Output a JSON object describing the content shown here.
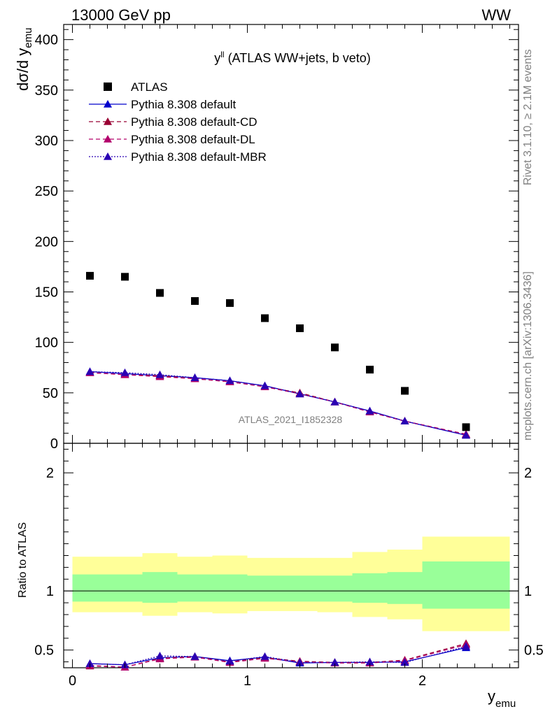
{
  "header": {
    "left": "13000 GeV pp",
    "right": "WW"
  },
  "side_labels": {
    "rivet": "Rivet 3.1.10, ≥ 2.1M events",
    "mcplots": "mcplots.cern.ch [arXiv:1306.3436]"
  },
  "plot_title_main": "y",
  "plot_title_sup": "ll",
  "plot_title_rest": " (ATLAS WW+jets, b veto)",
  "watermark": "ATLAS_2021_I1852328",
  "colors": {
    "data": "#000000",
    "default": "#0000cc",
    "cd": "#990033",
    "dl": "#b3006b",
    "mbr": "#2a00b3",
    "band_outer": "#ffff99",
    "band_inner": "#99ff99"
  },
  "chart_data": {
    "type": "scatter",
    "x_bins": [
      [
        0.0,
        0.2
      ],
      [
        0.2,
        0.4
      ],
      [
        0.4,
        0.6
      ],
      [
        0.6,
        0.8
      ],
      [
        0.8,
        1.0
      ],
      [
        1.0,
        1.2
      ],
      [
        1.2,
        1.4
      ],
      [
        1.4,
        1.6
      ],
      [
        1.6,
        1.8
      ],
      [
        1.8,
        2.0
      ],
      [
        2.0,
        2.5
      ]
    ],
    "x": [
      0.1,
      0.3,
      0.5,
      0.7,
      0.9,
      1.1,
      1.3,
      1.5,
      1.7,
      1.9,
      2.25
    ],
    "xlim": [
      -0.05,
      2.55
    ],
    "main": {
      "ylim": [
        0,
        415
      ],
      "ylabel": "dσ/d y",
      "ylabel_sub": "emu",
      "yticks": [
        0,
        50,
        100,
        150,
        200,
        250,
        300,
        350,
        400
      ],
      "legend": [
        "ATLAS",
        "Pythia 8.308 default",
        "Pythia 8.308 default-CD",
        "Pythia 8.308 default-DL",
        "Pythia 8.308 default-MBR"
      ],
      "series": [
        {
          "name": "ATLAS",
          "values": [
            166,
            165,
            149,
            141,
            139,
            124,
            114,
            95,
            73,
            52,
            16
          ]
        },
        {
          "name": "Pythia 8.308 default",
          "values": [
            71,
            69,
            67,
            65,
            62,
            57,
            49,
            41,
            32,
            22,
            8
          ]
        },
        {
          "name": "Pythia 8.308 default-CD",
          "values": [
            70,
            68,
            67,
            64,
            61,
            56,
            50,
            41,
            31,
            22,
            9
          ]
        },
        {
          "name": "Pythia 8.308 default-DL",
          "values": [
            70,
            68,
            66,
            64,
            61,
            56,
            49,
            41,
            31,
            22,
            9
          ]
        },
        {
          "name": "Pythia 8.308 default-MBR",
          "values": [
            71,
            70,
            68,
            65,
            62,
            57,
            49,
            41,
            32,
            22,
            8
          ]
        }
      ]
    },
    "ratio": {
      "ylim": [
        0.35,
        2.25
      ],
      "ylabel": "Ratio to ATLAS",
      "yticks": [
        0.5,
        1,
        2
      ],
      "band_outer": [
        [
          0.82,
          1.29
        ],
        [
          0.82,
          1.29
        ],
        [
          0.79,
          1.32
        ],
        [
          0.82,
          1.29
        ],
        [
          0.81,
          1.3
        ],
        [
          0.83,
          1.28
        ],
        [
          0.83,
          1.28
        ],
        [
          0.82,
          1.28
        ],
        [
          0.78,
          1.33
        ],
        [
          0.76,
          1.35
        ],
        [
          0.66,
          1.46
        ]
      ],
      "band_inner": [
        [
          0.91,
          1.14
        ],
        [
          0.91,
          1.14
        ],
        [
          0.9,
          1.16
        ],
        [
          0.91,
          1.14
        ],
        [
          0.91,
          1.14
        ],
        [
          0.91,
          1.13
        ],
        [
          0.91,
          1.13
        ],
        [
          0.91,
          1.13
        ],
        [
          0.9,
          1.15
        ],
        [
          0.89,
          1.16
        ],
        [
          0.85,
          1.25
        ]
      ],
      "series": [
        {
          "name": "Pythia 8.308 default",
          "values": [
            0.385,
            0.375,
            0.435,
            0.445,
            0.41,
            0.44,
            0.39,
            0.395,
            0.395,
            0.4,
            0.52
          ]
        },
        {
          "name": "Pythia 8.308 default-CD",
          "values": [
            0.365,
            0.355,
            0.43,
            0.445,
            0.4,
            0.435,
            0.405,
            0.395,
            0.395,
            0.415,
            0.555
          ]
        },
        {
          "name": "Pythia 8.308 default-DL",
          "values": [
            0.37,
            0.355,
            0.425,
            0.44,
            0.395,
            0.43,
            0.4,
            0.39,
            0.39,
            0.41,
            0.545
          ]
        },
        {
          "name": "Pythia 8.308 default-MBR",
          "values": [
            0.385,
            0.375,
            0.45,
            0.445,
            0.405,
            0.445,
            0.395,
            0.395,
            0.4,
            0.395,
            0.53
          ]
        }
      ]
    },
    "xticks": [
      0,
      1,
      2
    ],
    "xlabel": "y",
    "xlabel_sub": "emu"
  }
}
